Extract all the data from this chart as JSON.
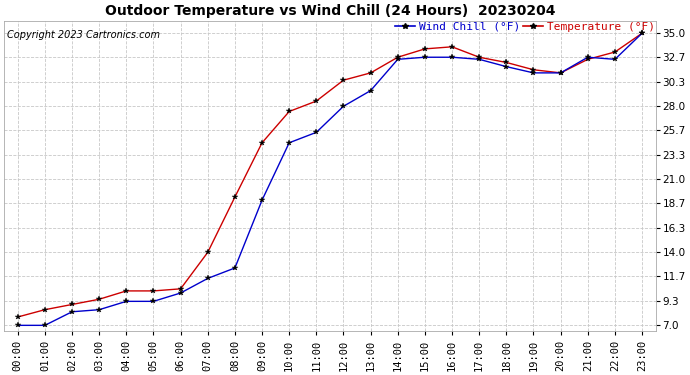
{
  "title": "Outdoor Temperature vs Wind Chill (24 Hours)  20230204",
  "copyright": "Copyright 2023 Cartronics.com",
  "legend_wind_chill": "Wind Chill (°F)",
  "legend_temperature": "Temperature (°F)",
  "x_labels": [
    "00:00",
    "01:00",
    "02:00",
    "03:00",
    "04:00",
    "05:00",
    "06:00",
    "07:00",
    "08:00",
    "09:00",
    "10:00",
    "11:00",
    "12:00",
    "13:00",
    "14:00",
    "15:00",
    "16:00",
    "17:00",
    "18:00",
    "19:00",
    "20:00",
    "21:00",
    "22:00",
    "23:00"
  ],
  "temperature": [
    7.8,
    8.5,
    9.0,
    9.5,
    10.3,
    10.3,
    10.5,
    14.0,
    19.3,
    24.5,
    27.5,
    28.5,
    30.5,
    31.2,
    32.7,
    33.5,
    33.7,
    32.7,
    32.2,
    31.5,
    31.2,
    32.5,
    33.2,
    35.0
  ],
  "wind_chill": [
    7.0,
    7.0,
    8.3,
    8.5,
    9.3,
    9.3,
    10.1,
    11.5,
    12.5,
    19.0,
    24.5,
    25.5,
    28.0,
    29.5,
    32.5,
    32.7,
    32.7,
    32.5,
    31.8,
    31.2,
    31.2,
    32.7,
    32.5,
    35.0
  ],
  "y_ticks": [
    7.0,
    9.3,
    11.7,
    14.0,
    16.3,
    18.7,
    21.0,
    23.3,
    25.7,
    28.0,
    30.3,
    32.7,
    35.0
  ],
  "y_tick_labels": [
    "7.0",
    "9.3",
    "11.7",
    "14.0",
    "16.3",
    "18.7",
    "21.0",
    "23.3",
    "25.7",
    "28.0",
    "30.3",
    "32.7",
    "35.0"
  ],
  "ylim": [
    6.5,
    36.2
  ],
  "temperature_color": "#cc0000",
  "wind_chill_color": "#0000cc",
  "background_color": "#ffffff",
  "grid_color": "#c8c8c8",
  "title_fontsize": 10,
  "copyright_fontsize": 7,
  "legend_fontsize": 8,
  "tick_fontsize": 7.5
}
